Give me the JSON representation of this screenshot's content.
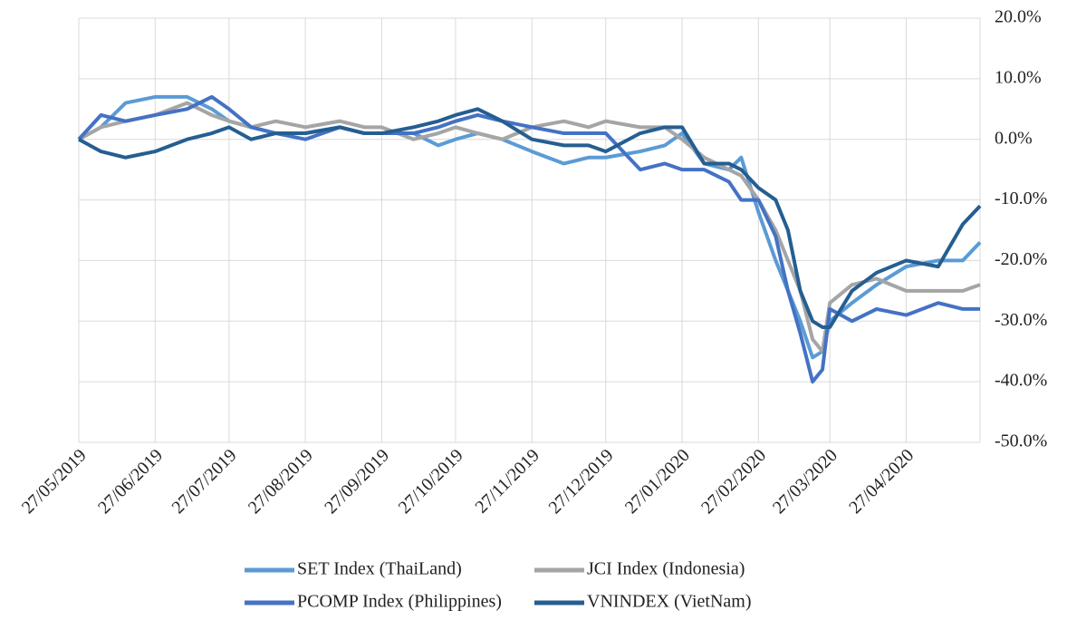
{
  "chart_data": {
    "type": "line",
    "x": [
      "27/05/2019",
      "05/06/2019",
      "15/06/2019",
      "27/06/2019",
      "10/07/2019",
      "20/07/2019",
      "27/07/2019",
      "05/08/2019",
      "15/08/2019",
      "27/08/2019",
      "10/09/2019",
      "20/09/2019",
      "27/09/2019",
      "10/10/2019",
      "20/10/2019",
      "27/10/2019",
      "05/11/2019",
      "15/11/2019",
      "27/11/2019",
      "10/12/2019",
      "20/12/2019",
      "27/12/2019",
      "10/01/2020",
      "20/01/2020",
      "27/01/2020",
      "05/02/2020",
      "15/02/2020",
      "20/02/2020",
      "27/02/2020",
      "05/03/2020",
      "10/03/2020",
      "15/03/2020",
      "20/03/2020",
      "24/03/2020",
      "27/03/2020",
      "05/04/2020",
      "15/04/2020",
      "27/04/2020",
      "10/05/2020",
      "20/05/2020",
      "27/05/2020"
    ],
    "series": [
      {
        "name": "SET Index (ThaiLand)",
        "color": "#5b9bd5",
        "values": [
          0,
          2,
          6,
          7,
          7,
          5,
          3,
          2,
          1,
          1,
          2,
          1,
          1,
          1,
          -1,
          0,
          1,
          0,
          -2,
          -4,
          -3,
          -3,
          -2,
          -1,
          1,
          -4,
          -5,
          -3,
          -12,
          -20,
          -25,
          -30,
          -36,
          -35,
          -30,
          -27,
          -24,
          -21,
          -20,
          -20,
          -17
        ]
      },
      {
        "name": "JCI Index (Indonesia)",
        "color": "#a5a5a5",
        "values": [
          0,
          2,
          3,
          4,
          6,
          4,
          3,
          2,
          3,
          2,
          3,
          2,
          2,
          0,
          1,
          2,
          1,
          0,
          2,
          3,
          2,
          3,
          2,
          2,
          0,
          -3,
          -5,
          -6,
          -10,
          -15,
          -20,
          -25,
          -33,
          -35,
          -27,
          -24,
          -23,
          -25,
          -25,
          -25,
          -24
        ]
      },
      {
        "name": "PCOMP Index (Philippines)",
        "color": "#4472c4",
        "values": [
          0,
          4,
          3,
          4,
          5,
          7,
          5,
          2,
          1,
          0,
          2,
          1,
          1,
          1,
          2,
          3,
          4,
          3,
          2,
          1,
          1,
          1,
          -5,
          -4,
          -5,
          -5,
          -7,
          -10,
          -10,
          -16,
          -25,
          -32,
          -40,
          -38,
          -28,
          -30,
          -28,
          -29,
          -27,
          -28,
          -28
        ]
      },
      {
        "name": "VNINDEX (VietNam)",
        "color": "#255e91",
        "values": [
          0,
          -2,
          -3,
          -2,
          0,
          1,
          2,
          0,
          1,
          1,
          2,
          1,
          1,
          2,
          3,
          4,
          5,
          3,
          0,
          -1,
          -1,
          -2,
          1,
          2,
          2,
          -4,
          -4,
          -5,
          -8,
          -10,
          -15,
          -25,
          -30,
          -31,
          -31,
          -25,
          -22,
          -20,
          -21,
          -14,
          -11
        ]
      }
    ],
    "xlim": [
      "27/05/2019",
      "27/05/2020"
    ],
    "xticks": [
      "27/05/2019",
      "27/06/2019",
      "27/07/2019",
      "27/08/2019",
      "27/09/2019",
      "27/10/2019",
      "27/11/2019",
      "27/12/2019",
      "27/01/2020",
      "27/02/2020",
      "27/03/2020",
      "27/04/2020"
    ],
    "ylim": [
      -50,
      20
    ],
    "yticks": [
      {
        "value": -50,
        "label": "-50.0%"
      },
      {
        "value": -40,
        "label": "-40.0%"
      },
      {
        "value": -30,
        "label": "-30.0%"
      },
      {
        "value": -20,
        "label": "-20.0%"
      },
      {
        "value": -10,
        "label": "-10.0%"
      },
      {
        "value": 0,
        "label": "0.0%"
      },
      {
        "value": 10,
        "label": "10.0%"
      },
      {
        "value": 20,
        "label": "20.0%"
      }
    ],
    "grid": true
  }
}
